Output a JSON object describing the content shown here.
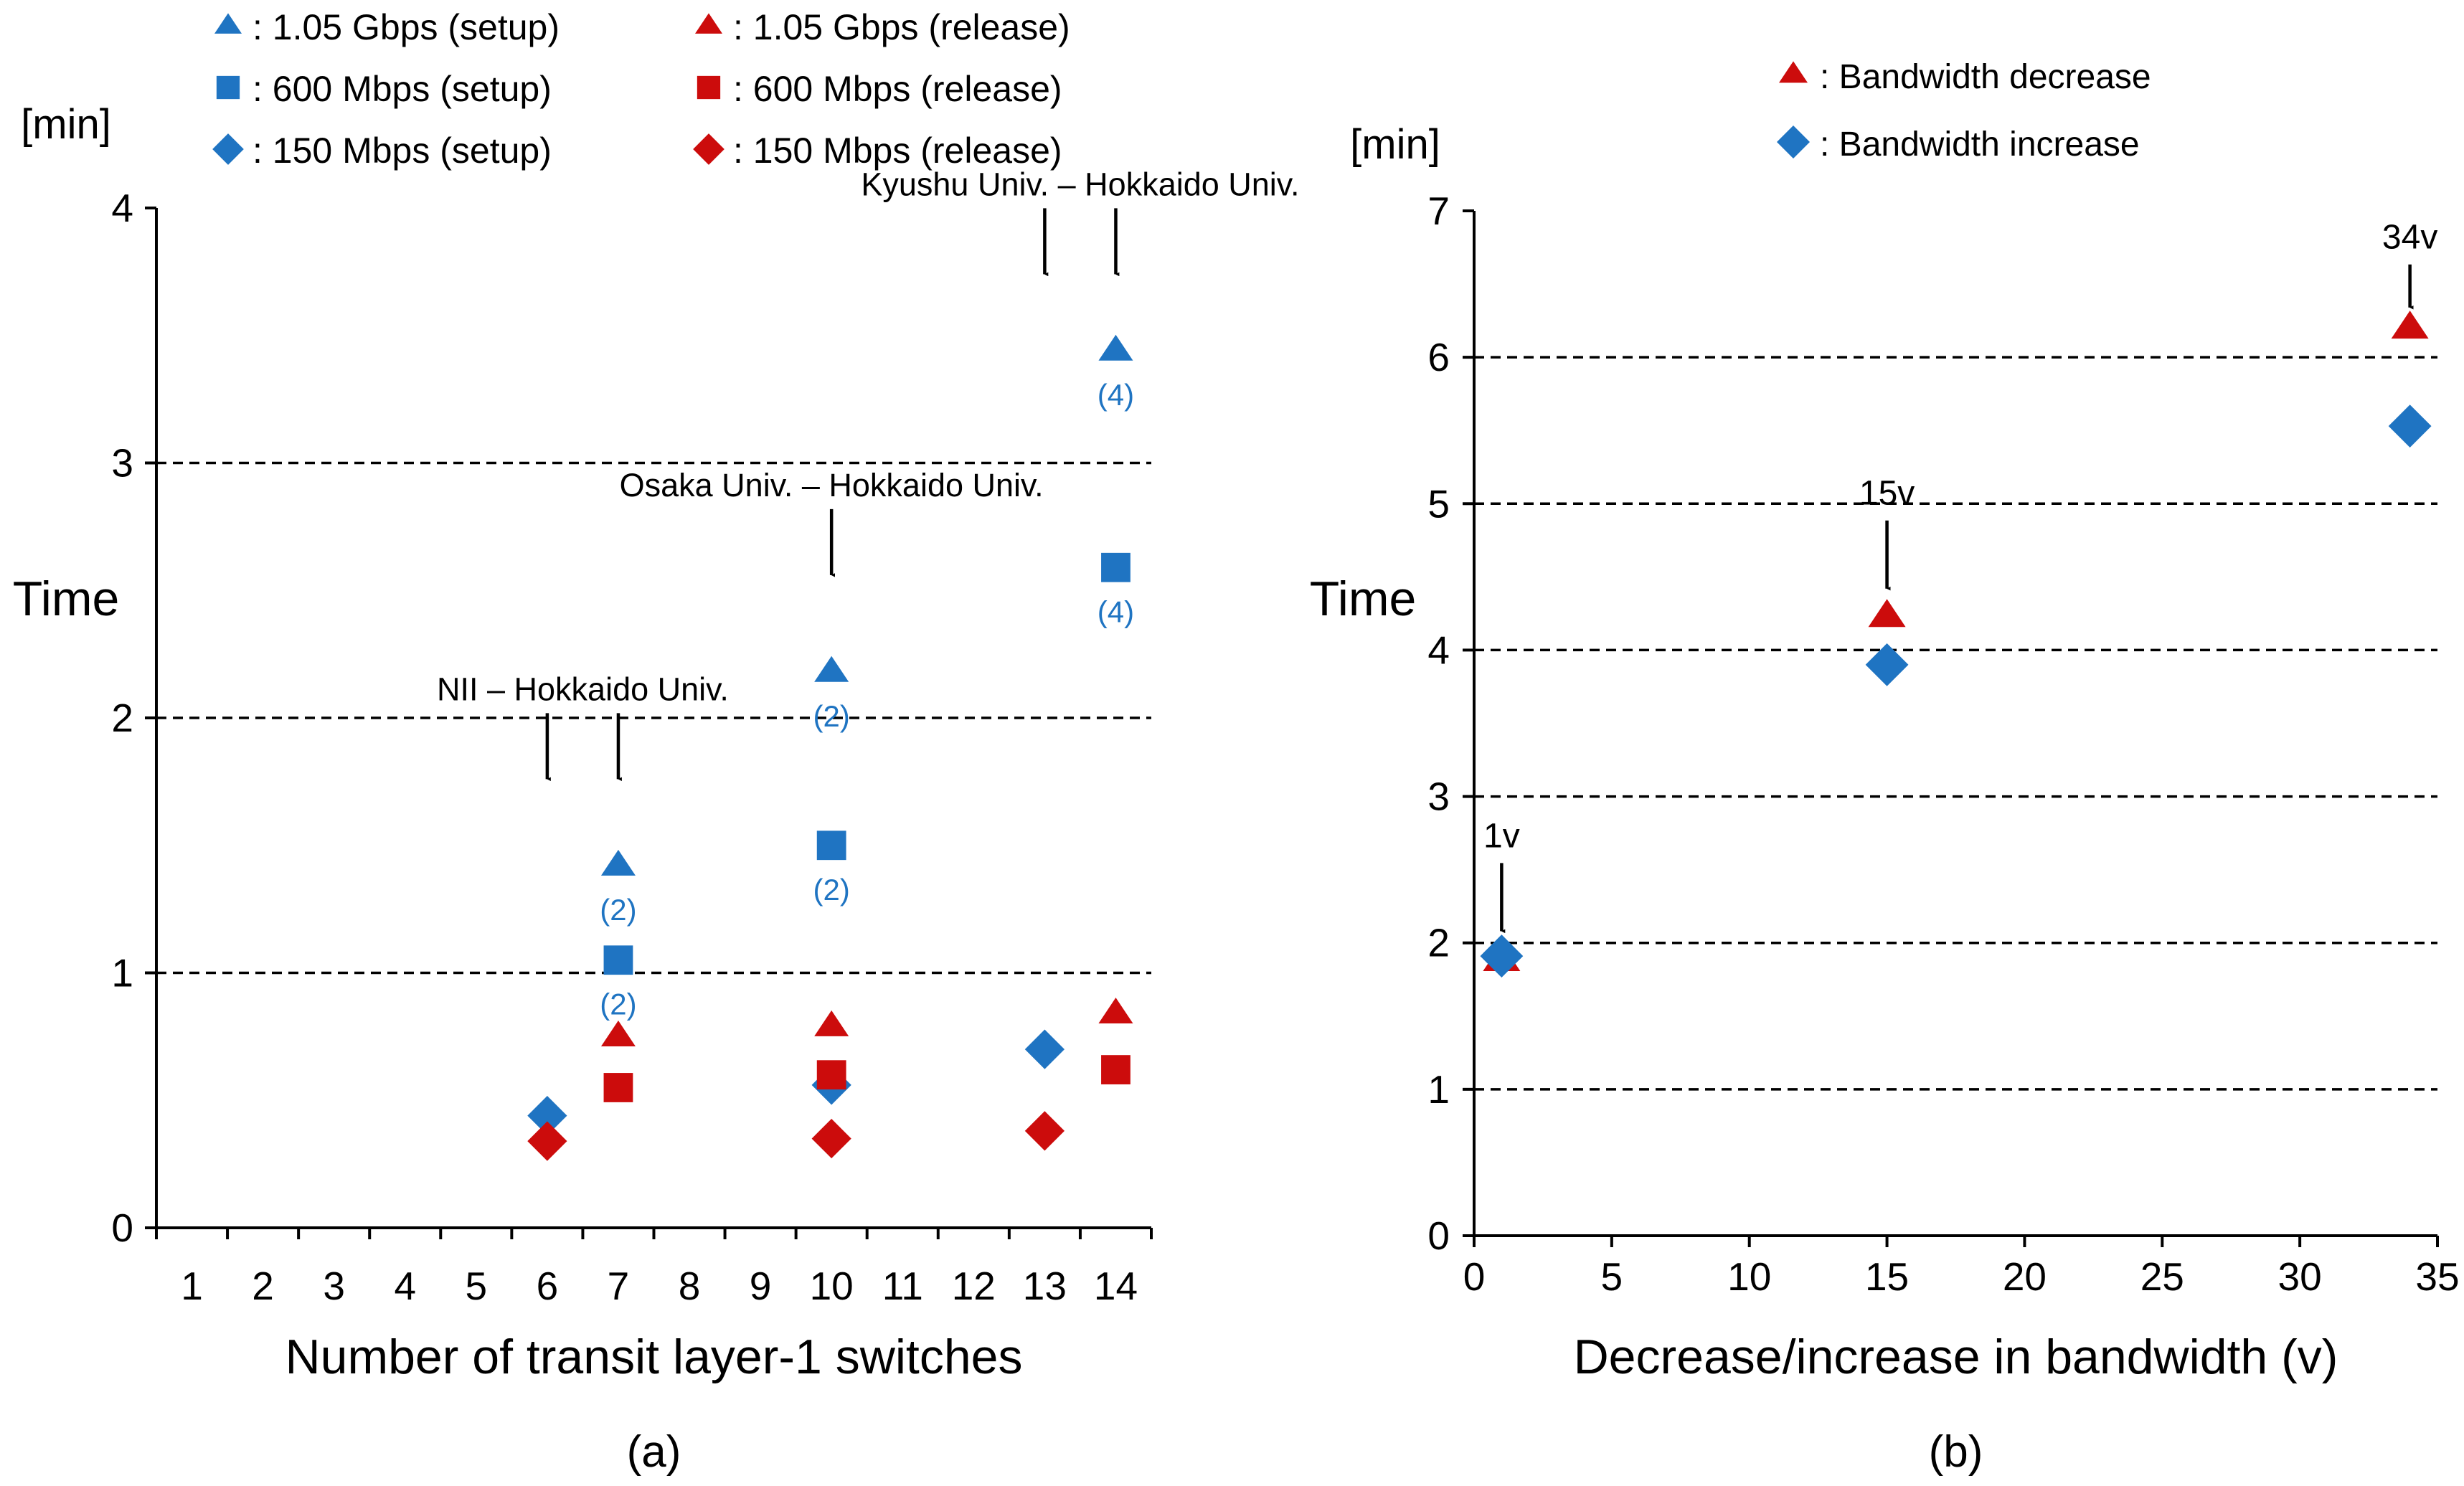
{
  "colors": {
    "blue": "#1f74c2",
    "red": "#cc0c0c",
    "axis": "#000000",
    "grid": "#000000"
  },
  "chart_data": [
    {
      "type": "scatter",
      "panel_label": "(a)",
      "xlabel": "Number of transit layer-1 switches",
      "ylabel": "Time",
      "yunit": "[min]",
      "categories": [
        "1",
        "2",
        "3",
        "4",
        "5",
        "6",
        "7",
        "8",
        "9",
        "10",
        "11",
        "12",
        "13",
        "14"
      ],
      "ylim": [
        0,
        4
      ],
      "yticks": [
        "0",
        "1",
        "2",
        "3",
        "4"
      ],
      "gridlines": [
        1,
        2,
        3
      ],
      "legend": {
        "setup": [
          "1.05 Gbps (setup)",
          "600 Mbps (setup)",
          "150 Mbps (setup)"
        ],
        "release": [
          "1.05 Gbps (release)",
          "600 Mbps (release)",
          "150 Mbps (release)"
        ],
        "prefix": ": "
      },
      "series": [
        {
          "name": "1.05 Gbps (setup)",
          "marker": "triangle",
          "color": "blue",
          "points": [
            {
              "cat": "7",
              "y": 1.42
            },
            {
              "cat": "10",
              "y": 2.18
            },
            {
              "cat": "14",
              "y": 3.44
            }
          ]
        },
        {
          "name": "600 Mbps (setup)",
          "marker": "square",
          "color": "blue",
          "points": [
            {
              "cat": "7",
              "y": 1.05
            },
            {
              "cat": "10",
              "y": 1.5
            },
            {
              "cat": "14",
              "y": 2.59
            }
          ]
        },
        {
          "name": "150 Mbps (setup)",
          "marker": "diamond",
          "color": "blue",
          "points": [
            {
              "cat": "6",
              "y": 0.44
            },
            {
              "cat": "10",
              "y": 0.56
            },
            {
              "cat": "13",
              "y": 0.7
            }
          ]
        },
        {
          "name": "1.05 Gbps (release)",
          "marker": "triangle",
          "color": "red",
          "points": [
            {
              "cat": "7",
              "y": 0.75
            },
            {
              "cat": "10",
              "y": 0.79
            },
            {
              "cat": "14",
              "y": 0.84
            }
          ]
        },
        {
          "name": "600 Mbps (release)",
          "marker": "square",
          "color": "red",
          "points": [
            {
              "cat": "7",
              "y": 0.55
            },
            {
              "cat": "10",
              "y": 0.6
            },
            {
              "cat": "14",
              "y": 0.62
            }
          ]
        },
        {
          "name": "150 Mbps (release)",
          "marker": "diamond",
          "color": "red",
          "points": [
            {
              "cat": "6",
              "y": 0.34
            },
            {
              "cat": "10",
              "y": 0.35
            },
            {
              "cat": "13",
              "y": 0.38
            }
          ]
        }
      ],
      "point_labels": [
        {
          "text": "(2)",
          "cat": "7",
          "y": 1.42
        },
        {
          "text": "(2)",
          "cat": "7",
          "y": 1.05
        },
        {
          "text": "(2)",
          "cat": "10",
          "y": 2.18
        },
        {
          "text": "(2)",
          "cat": "10",
          "y": 1.5
        },
        {
          "text": "(4)",
          "cat": "14",
          "y": 3.44
        },
        {
          "text": "(4)",
          "cat": "14",
          "y": 2.59
        }
      ],
      "annotations": [
        {
          "text": "NII – Hokkaido Univ.",
          "arrows": [
            {
              "cat": "6",
              "y": 1.76
            },
            {
              "cat": "7",
              "y": 1.76
            }
          ]
        },
        {
          "text": "Osaka Univ. – Hokkaido Univ.",
          "arrows": [
            {
              "cat": "10",
              "y": 2.56
            }
          ]
        },
        {
          "text": "Kyushu Univ. – Hokkaido Univ.",
          "arrows": [
            {
              "cat": "13",
              "y": 3.74
            },
            {
              "cat": "14",
              "y": 3.74
            }
          ]
        }
      ]
    },
    {
      "type": "scatter",
      "panel_label": "(b)",
      "xlabel": "Decrease/increase in bandwidth (v)",
      "ylabel": "Time",
      "yunit": "[min]",
      "xlim": [
        0,
        35
      ],
      "xticks": [
        "0",
        "5",
        "10",
        "15",
        "20",
        "25",
        "30",
        "35"
      ],
      "ylim": [
        0,
        7
      ],
      "yticks": [
        "0",
        "1",
        "2",
        "3",
        "4",
        "5",
        "6",
        "7"
      ],
      "gridlines": [
        1,
        2,
        3,
        4,
        5,
        6
      ],
      "legend": {
        "entries": [
          "Bandwidth decrease",
          "Bandwidth increase"
        ],
        "prefix": ": "
      },
      "series": [
        {
          "name": "Bandwidth decrease",
          "marker": "triangle",
          "color": "red",
          "points": [
            {
              "x": 1,
              "y": 1.88
            },
            {
              "x": 15,
              "y": 4.23
            },
            {
              "x": 34,
              "y": 6.2
            }
          ]
        },
        {
          "name": "Bandwidth increase",
          "marker": "diamond",
          "color": "blue",
          "points": [
            {
              "x": 1,
              "y": 1.91
            },
            {
              "x": 15,
              "y": 3.9
            },
            {
              "x": 34,
              "y": 5.53
            }
          ]
        }
      ],
      "annotations": [
        {
          "text": "1v",
          "x": 1,
          "y": 2.08
        },
        {
          "text": "15v",
          "x": 15,
          "y": 4.42
        },
        {
          "text": "34v",
          "x": 34,
          "y": 6.34
        }
      ]
    }
  ]
}
